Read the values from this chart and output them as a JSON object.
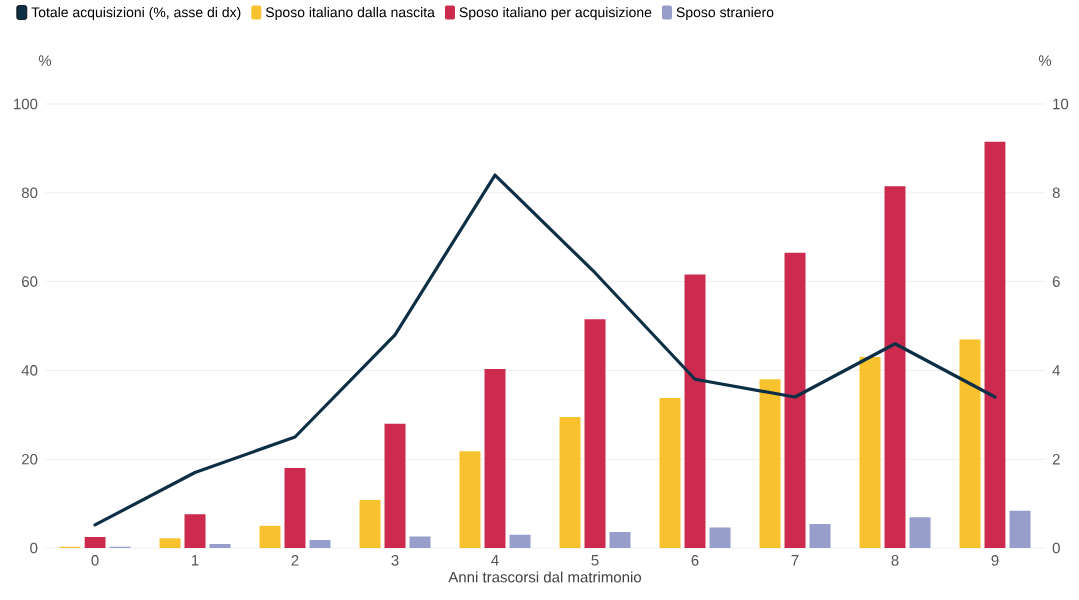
{
  "chart_data": {
    "type": "bar",
    "categories": [
      "0",
      "1",
      "2",
      "3",
      "4",
      "5",
      "6",
      "7",
      "8",
      "9"
    ],
    "xlabel": "Anni trascorsi dal matrimonio",
    "ylabel": "%",
    "y2label": "%",
    "ylim": [
      0,
      100
    ],
    "yticks": [
      0,
      20,
      40,
      60,
      80,
      100
    ],
    "y2lim": [
      0,
      10
    ],
    "y2ticks": [
      0,
      2,
      4,
      6,
      8,
      10
    ],
    "grid": "y",
    "legend": "top left",
    "line_style": "solid",
    "series": [
      {
        "name": "Totale acquisizioni (%, asse di dx)",
        "type": "line",
        "axis": "y2",
        "color": "#0d2f45",
        "values": [
          0.52,
          1.7,
          2.5,
          4.8,
          8.4,
          6.2,
          3.8,
          3.4,
          4.6,
          3.4
        ]
      },
      {
        "name": "Sposo italiano dalla nascita",
        "color": "#f8c22e",
        "values": [
          0.3,
          2.2,
          5,
          10.8,
          21.8,
          29.5,
          33.8,
          38,
          43,
          47
        ]
      },
      {
        "name": "Sposo italiano per acquisizione",
        "color": "#cc2b4f",
        "values": [
          2.5,
          7.6,
          18,
          28,
          40.3,
          51.5,
          61.6,
          66.5,
          81.5,
          91.5
        ]
      },
      {
        "name": "Sposo straniero",
        "color": "#969ec9",
        "values": [
          0.3,
          0.9,
          1.8,
          2.6,
          3,
          3.6,
          4.6,
          5.4,
          6.9,
          8.4
        ]
      }
    ]
  }
}
